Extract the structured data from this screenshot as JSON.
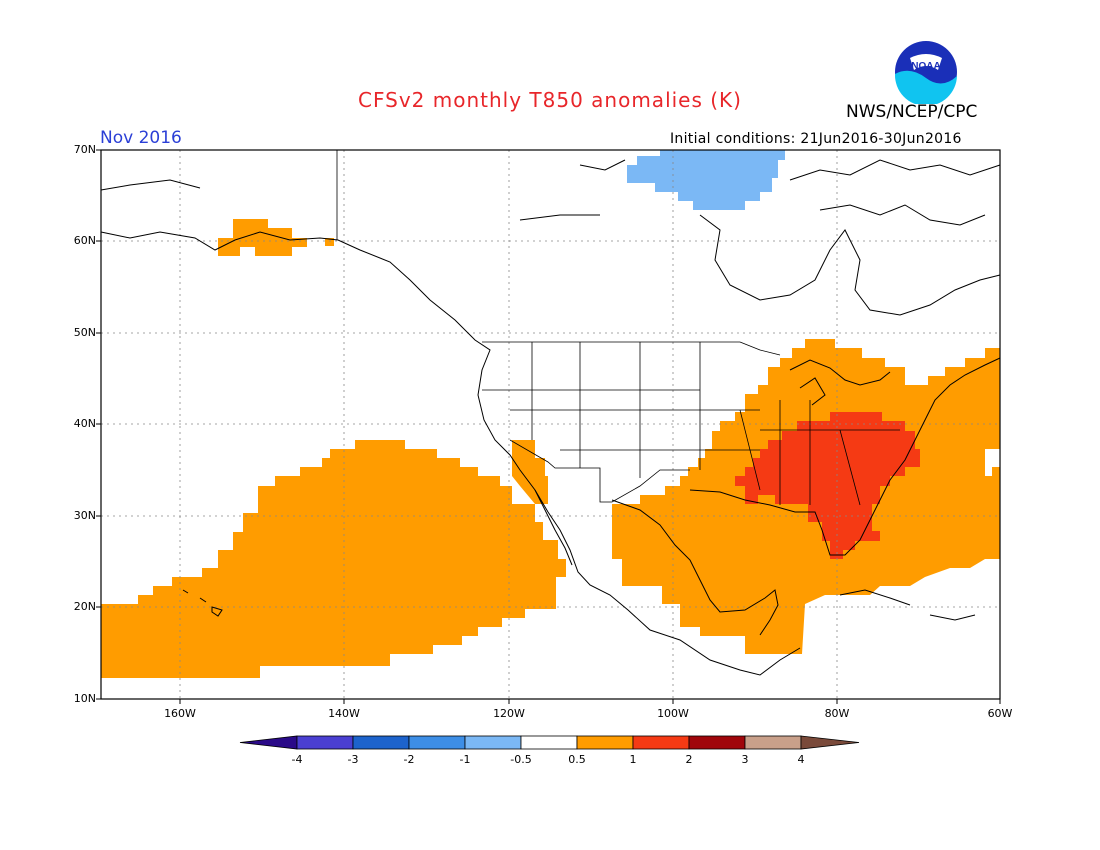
{
  "title": "CFSv2 monthly T850 anomalies (K)",
  "organization": "NWS/NCEP/CPC",
  "logo": {
    "icon": "noaa-logo",
    "text": "NOAA"
  },
  "valid_month": "Nov 2016",
  "initial_conditions": "Initial conditions: 21Jun2016-30Jun2016",
  "latitude_labels": [
    "70N",
    "60N",
    "50N",
    "40N",
    "30N",
    "20N",
    "10N"
  ],
  "longitude_labels": [
    "160W",
    "140W",
    "120W",
    "100W",
    "80W",
    "60W"
  ],
  "colorbar": {
    "labels": [
      "-4",
      "-3",
      "-2",
      "-1",
      "-0.5",
      "0.5",
      "1",
      "2",
      "3",
      "4"
    ],
    "colors": [
      "#2a0a88",
      "#4a3fd2",
      "#1d63cc",
      "#3d8ee6",
      "#7bb8f5",
      "#ffffff",
      "#ff9c00",
      "#f53a14",
      "#a0060b",
      "#c9a08a",
      "#7a4a3a"
    ]
  },
  "anomaly_regions": [
    {
      "category": "0.5 to 1",
      "color": "#ff9c00",
      "area": "Central and eastern Pacific south of 35N"
    },
    {
      "category": "0.5 to 1",
      "color": "#ff9c00",
      "area": "Eastern United States, Gulf of Mexico and western Atlantic"
    },
    {
      "category": "0.5 to 1",
      "color": "#ff9c00",
      "area": "Southern Alaska"
    },
    {
      "category": "1 to 2",
      "color": "#f53a14",
      "area": "Southeastern United States"
    },
    {
      "category": "-1 to -0.5",
      "color": "#7bb8f5",
      "area": "Northern Canada / Arctic islands"
    }
  ]
}
